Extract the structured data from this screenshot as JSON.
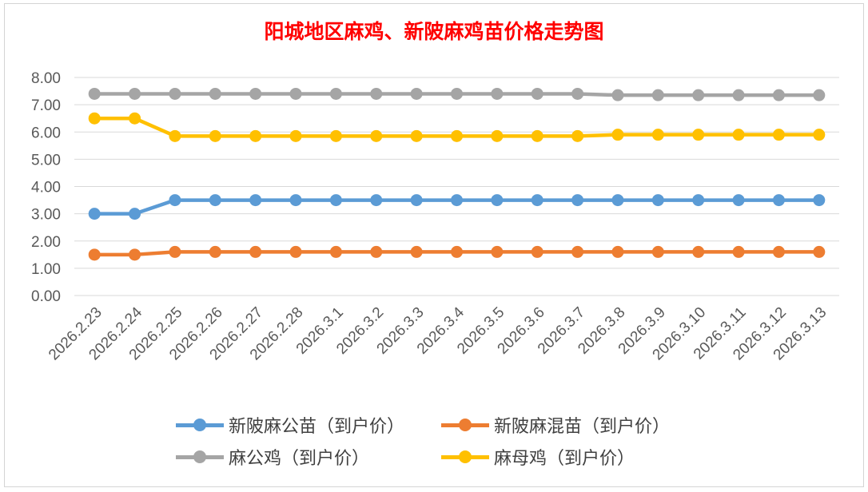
{
  "chart_data": {
    "type": "line",
    "title": "阳城地区麻鸡、新陂麻鸡苗价格走势图",
    "categories": [
      "2026.2.23",
      "2026.2.24",
      "2026.2.25",
      "2026.2.26",
      "2026.2.27",
      "2026.2.28",
      "2026.3.1",
      "2026.3.2",
      "2026.3.3",
      "2026.3.4",
      "2026.3.5",
      "2026.3.6",
      "2026.3.7",
      "2026.3.8",
      "2026.3.9",
      "2026.3.10",
      "2026.3.11",
      "2026.3.12",
      "2026.3.13"
    ],
    "ylim": [
      0,
      8
    ],
    "yticks": [
      "0.00",
      "1.00",
      "2.00",
      "3.00",
      "4.00",
      "5.00",
      "6.00",
      "7.00",
      "8.00"
    ],
    "grid": true,
    "legend_position": "bottom",
    "series": [
      {
        "name": "新陂麻公苗（到户价）",
        "color": "#5b9bd5",
        "values": [
          3.0,
          3.0,
          3.5,
          3.5,
          3.5,
          3.5,
          3.5,
          3.5,
          3.5,
          3.5,
          3.5,
          3.5,
          3.5,
          3.5,
          3.5,
          3.5,
          3.5,
          3.5,
          3.5
        ]
      },
      {
        "name": "新陂麻混苗（到户价）",
        "color": "#ed7d31",
        "values": [
          1.5,
          1.5,
          1.6,
          1.6,
          1.6,
          1.6,
          1.6,
          1.6,
          1.6,
          1.6,
          1.6,
          1.6,
          1.6,
          1.6,
          1.6,
          1.6,
          1.6,
          1.6,
          1.6
        ]
      },
      {
        "name": "麻公鸡（到户价）",
        "color": "#a5a5a5",
        "values": [
          7.4,
          7.4,
          7.4,
          7.4,
          7.4,
          7.4,
          7.4,
          7.4,
          7.4,
          7.4,
          7.4,
          7.4,
          7.4,
          7.35,
          7.35,
          7.35,
          7.35,
          7.35,
          7.35
        ]
      },
      {
        "name": "麻母鸡（到户价）",
        "color": "#ffc000",
        "values": [
          6.5,
          6.5,
          5.85,
          5.85,
          5.85,
          5.85,
          5.85,
          5.85,
          5.85,
          5.85,
          5.85,
          5.85,
          5.85,
          5.9,
          5.9,
          5.9,
          5.9,
          5.9,
          5.9
        ]
      }
    ]
  }
}
